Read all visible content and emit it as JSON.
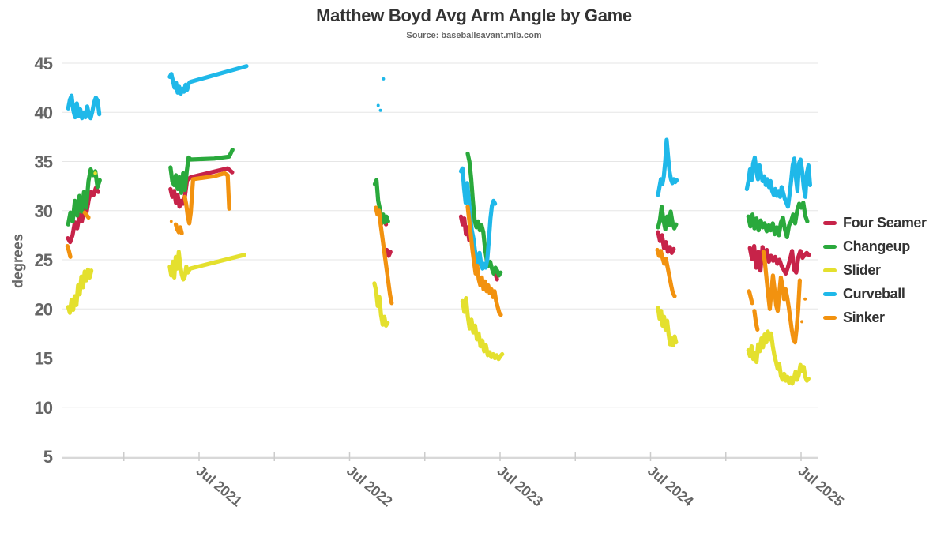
{
  "title": "Matthew Boyd Avg Arm Angle by Game",
  "subtitle": "Source: baseballsavant.mlb.com",
  "colors": {
    "background": "#ffffff",
    "grid": "#e6e6e6",
    "axis_line": "#cccccc",
    "tick": "#cccccc",
    "axis_label": "#666666",
    "title": "#333333",
    "subtitle": "#666666",
    "legend_text": "#333333"
  },
  "chart_data": {
    "type": "line",
    "title": "Matthew Boyd Avg Arm Angle by Game",
    "subtitle": "Source: baseballsavant.mlb.com",
    "xlabel": "",
    "ylabel": "degrees",
    "grid": "horizontal-only",
    "legend_position": "right",
    "y_axis": {
      "min": 5,
      "max": 45,
      "ticks": [
        45,
        40,
        35,
        30,
        25,
        20,
        15,
        10,
        5
      ]
    },
    "x_axis": {
      "unit": "decimal-year",
      "min": 2020.55,
      "max": 2025.62,
      "tick_values": [
        2021.0,
        2021.5,
        2022.0,
        2022.5,
        2023.0,
        2023.5,
        2024.0,
        2024.5,
        2025.0,
        2025.5
      ],
      "labels": [
        {
          "value": 2021.5,
          "text": "Jul 2021"
        },
        {
          "value": 2022.5,
          "text": "Jul 2022"
        },
        {
          "value": 2023.5,
          "text": "Jul 2023"
        },
        {
          "value": 2024.5,
          "text": "Jul 2024"
        },
        {
          "value": 2025.5,
          "text": "Jul 2025"
        }
      ]
    },
    "series": [
      {
        "name": "Four Seamer",
        "color": "#c72349",
        "segments": [
          {
            "x0": 2020.628,
            "dx": 0.0155,
            "y": [
              27.2,
              26.8,
              27.5,
              28.8,
              28.2,
              29.6,
              28.9,
              30.2,
              29.8,
              31.2,
              31.9,
              31.6,
              32.3,
              31.9
            ]
          },
          {
            "x": [
              2021.31,
              2021.322,
              2021.334,
              2021.346,
              2021.358,
              2021.37,
              2021.382,
              2021.394,
              2021.406,
              2021.42,
              2021.445,
              2021.69,
              2021.72
            ],
            "y": [
              32.2,
              31.4,
              32.0,
              30.8,
              31.6,
              30.4,
              31.0,
              30.7,
              31.5,
              33.1,
              33.4,
              34.3,
              33.9
            ]
          },
          {
            "x": [
              2022.73,
              2022.742
            ],
            "y": [
              29.0,
              28.6
            ]
          },
          {
            "x": [
              2022.748,
              2022.76,
              2022.772
            ],
            "y": [
              26.0,
              25.4,
              25.8
            ]
          },
          {
            "x0": 2023.24,
            "dx": 0.011,
            "y": [
              29.4,
              28.6,
              29.2,
              27.6,
              28.3,
              27.0,
              27.8
            ]
          },
          {
            "x": [
              2023.468,
              2023.48
            ],
            "y": [
              23.6,
              23.0
            ]
          },
          {
            "x0": 2024.55,
            "dx": 0.013,
            "y": [
              27.8,
              26.9,
              27.5,
              26.2,
              26.8,
              25.8,
              26.3,
              25.7,
              26.1
            ]
          },
          {
            "x0": 2025.16,
            "dx": 0.014,
            "y": [
              26.2,
              25.1,
              26.4,
              24.2,
              25.8,
              23.9,
              26.3,
              25.2,
              26.0,
              24.8,
              25.4,
              24.9,
              25.3,
              24.6,
              25.0,
              24.4,
              24.0,
              23.6,
              24.2,
              25.0,
              25.9,
              24.0,
              23.7,
              25.3,
              25.9,
              25.2,
              25.5,
              25.7,
              25.5
            ]
          }
        ],
        "dots": []
      },
      {
        "name": "Changeup",
        "color": "#2aa93c",
        "segments": [
          {
            "x0": 2020.63,
            "dx": 0.015,
            "y": [
              28.6,
              29.8,
              28.9,
              31.0,
              29.5,
              31.5,
              29.9,
              31.9,
              30.3,
              33.0,
              34.2,
              33.6,
              34.0,
              32.4,
              33.1
            ]
          },
          {
            "x": [
              2021.31,
              2021.322,
              2021.334,
              2021.346,
              2021.358,
              2021.37,
              2021.382,
              2021.394,
              2021.406,
              2021.418,
              2021.43,
              2021.445,
              2021.6,
              2021.7,
              2021.722
            ],
            "y": [
              34.4,
              33.0,
              32.6,
              33.6,
              32.2,
              33.4,
              31.8,
              33.8,
              32.1,
              34.0,
              35.4,
              35.2,
              35.3,
              35.5,
              36.2
            ]
          },
          {
            "x0": 2022.668,
            "dx": 0.011,
            "y": [
              32.7,
              33.1,
              31.0,
              30.2,
              28.7,
              29.6,
              28.8,
              29.4,
              28.9
            ]
          },
          {
            "x0": 2023.285,
            "dx": 0.0115,
            "y": [
              35.8,
              35.0,
              33.3,
              31.0,
              29.0,
              28.3,
              28.9,
              28.0,
              28.5,
              27.8,
              26.1,
              25.0,
              24.4,
              24.8,
              24.1,
              23.6,
              24.2,
              23.9,
              23.4,
              23.7
            ]
          },
          {
            "x0": 2024.55,
            "dx": 0.012,
            "y": [
              28.3,
              29.0,
              30.4,
              29.0,
              28.1,
              29.4,
              28.5,
              29.9,
              28.8,
              28.2,
              28.6
            ]
          },
          {
            "x0": 2025.15,
            "dx": 0.0135,
            "y": [
              29.4,
              28.4,
              29.6,
              28.2,
              29.2,
              28.0,
              29.0,
              28.3,
              28.7,
              27.9,
              28.5,
              28.0,
              28.7,
              27.6,
              28.3,
              27.5,
              28.8,
              29.3,
              28.1,
              27.3,
              28.5,
              28.9,
              29.6,
              28.7,
              30.0,
              30.7,
              30.3,
              30.8,
              29.5,
              28.9
            ]
          }
        ],
        "dots": []
      },
      {
        "name": "Slider",
        "color": "#e4e02e",
        "segments": [
          {
            "x0": 2020.63,
            "dx": 0.011,
            "y": [
              20.2,
              19.6,
              20.9,
              19.9,
              21.3,
              20.4,
              22.4,
              21.5,
              23.3,
              22.2,
              23.8,
              22.9,
              24.0,
              23.2,
              23.9
            ]
          },
          {
            "x": [
              2021.305,
              2021.315,
              2021.325,
              2021.335,
              2021.345,
              2021.355,
              2021.365,
              2021.375,
              2021.385,
              2021.395,
              2021.405,
              2021.415,
              2021.425,
              2021.44,
              2021.8
            ],
            "y": [
              24.3,
              23.4,
              24.8,
              23.2,
              25.3,
              24.1,
              25.8,
              24.4,
              23.5,
              23.0,
              23.3,
              24.3,
              23.7,
              24.1,
              25.5
            ]
          },
          {
            "x0": 2022.665,
            "dx": 0.011,
            "y": [
              22.6,
              21.9,
              20.3,
              21.2,
              19.4,
              18.4,
              19.2,
              18.3,
              18.6
            ]
          },
          {
            "x0": 2023.25,
            "dx": 0.012,
            "y": [
              20.8,
              19.7,
              21.1,
              19.2,
              18.0,
              18.9,
              17.6,
              18.3,
              16.9,
              17.5,
              16.2,
              16.8,
              15.7,
              16.3,
              15.3,
              15.6,
              15.1,
              15.4,
              15.0,
              15.3,
              14.9,
              15.2,
              15.4
            ]
          },
          {
            "x0": 2024.55,
            "dx": 0.01,
            "y": [
              20.1,
              19.0,
              19.8,
              18.3,
              19.2,
              17.9,
              18.8,
              17.4,
              16.4,
              17.0,
              16.3,
              17.2,
              16.6
            ]
          },
          {
            "x0": 2025.15,
            "dx": 0.0108,
            "y": [
              15.8,
              15.2,
              16.2,
              14.9,
              15.5,
              14.6,
              16.4,
              15.7,
              17.0,
              16.1,
              17.4,
              16.6,
              17.7,
              16.9,
              17.5,
              16.2,
              15.3,
              14.6,
              13.9,
              14.4,
              13.2,
              12.8,
              13.4,
              12.7,
              13.1,
              12.5,
              13.0,
              12.4,
              12.9,
              13.6,
              12.8,
              13.3,
              14.3,
              13.7,
              14.1,
              13.1,
              12.7,
              12.9
            ]
          }
        ],
        "dots": [
          [
            2020.81,
            33.8,
            2.3
          ]
        ]
      },
      {
        "name": "Curveball",
        "color": "#1fb8e9",
        "segments": [
          {
            "x0": 2020.63,
            "dx": 0.0115,
            "y": [
              40.4,
              41.3,
              41.7,
              40.2,
              39.5,
              40.9,
              39.6,
              40.3,
              39.4,
              40.0,
              39.5,
              40.6,
              39.7,
              39.4,
              40.1,
              41.0,
              41.5,
              41.2,
              39.8
            ]
          },
          {
            "x": [
              2021.305,
              2021.3155,
              2021.326,
              2021.3365,
              2021.347,
              2021.3575,
              2021.368,
              2021.3785,
              2021.389,
              2021.3995,
              2021.41,
              2021.4205,
              2021.431,
              2021.4415,
              2021.815
            ],
            "y": [
              43.6,
              43.9,
              43.2,
              42.5,
              43.0,
              42.0,
              42.6,
              41.9,
              42.4,
              42.1,
              42.8,
              42.3,
              42.9,
              43.1,
              44.7
            ]
          },
          {
            "x0": 2023.24,
            "dx": 0.0103,
            "y": [
              34.0,
              34.3,
              32.3,
              30.8,
              32.8,
              31.3,
              29.5,
              28.0,
              27.2,
              26.0,
              25.1,
              24.5,
              25.7,
              24.6,
              24.1,
              24.6,
              24.2,
              25.0,
              27.0,
              29.2,
              30.5,
              31.0,
              30.7
            ]
          },
          {
            "x0": 2024.55,
            "dx": 0.0095,
            "y": [
              31.6,
              32.4,
              33.2,
              32.7,
              33.5,
              35.0,
              37.2,
              35.5,
              34.0,
              33.2,
              32.8,
              33.2,
              32.9,
              33.1
            ]
          },
          {
            "x0": 2025.14,
            "dx": 0.0105,
            "y": [
              32.2,
              33.0,
              34.2,
              33.1,
              34.8,
              35.4,
              34.0,
              33.2,
              34.6,
              33.6,
              33.0,
              33.5,
              32.6,
              33.2,
              32.4,
              33.0,
              32.0,
              31.6,
              32.2,
              31.5,
              32.0,
              31.4,
              32.4,
              31.8,
              31.2,
              30.8,
              30.4,
              31.6,
              33.0,
              34.6,
              35.3,
              33.4,
              32.0,
              34.8,
              35.2,
              34.0,
              32.4,
              31.4,
              33.8,
              34.6,
              32.6
            ]
          }
        ],
        "dots": [
          [
            2022.69,
            40.7,
            2.0
          ],
          [
            2022.705,
            40.2,
            2.0
          ],
          [
            2022.725,
            43.4,
            2.0
          ]
        ]
      },
      {
        "name": "Sinker",
        "color": "#f2920f",
        "segments": [
          {
            "x": [
              2020.625,
              2020.635,
              2020.645
            ],
            "y": [
              26.4,
              25.9,
              25.3
            ]
          },
          {
            "x": [
              2020.74,
              2020.75,
              2020.765
            ],
            "y": [
              29.8,
              29.6,
              29.3
            ]
          },
          {
            "x": [
              2021.345,
              2021.355,
              2021.365,
              2021.375,
              2021.385
            ],
            "y": [
              28.6,
              28.1,
              27.8,
              28.3,
              27.7
            ]
          },
          {
            "x": [
              2021.405,
              2021.415,
              2021.425,
              2021.435,
              2021.445,
              2021.46,
              2021.6,
              2021.67,
              2021.69,
              2021.695,
              2021.7
            ],
            "y": [
              31.4,
              30.6,
              29.4,
              28.7,
              29.8,
              33.2,
              33.5,
              33.8,
              33.6,
              32.0,
              30.2
            ]
          },
          {
            "x0": 2022.675,
            "dx": 0.0105,
            "y": [
              30.3,
              29.6,
              30.0,
              28.6,
              27.4,
              26.2,
              25.0,
              23.8,
              22.6,
              21.4,
              20.6
            ]
          },
          {
            "x0": 2023.285,
            "dx": 0.0105,
            "y": [
              30.4,
              29.0,
              27.5,
              26.0,
              24.8,
              23.6,
              24.4,
              23.0,
              22.4,
              23.2,
              22.0,
              22.8,
              21.8,
              22.4,
              21.6,
              22.0,
              21.2,
              21.8,
              20.8,
              20.2,
              19.6,
              19.4
            ]
          },
          {
            "x0": 2024.545,
            "dx": 0.0115,
            "y": [
              26.0,
              25.4,
              25.9,
              25.2,
              24.6,
              25.1,
              24.2,
              23.3,
              22.4,
              21.6,
              21.3
            ]
          },
          {
            "x": [
              2025.155,
              2025.165,
              2025.175
            ],
            "y": [
              21.8,
              21.2,
              20.6
            ]
          },
          {
            "x": [
              2025.19,
              2025.2,
              2025.21
            ],
            "y": [
              19.8,
              18.6,
              17.9
            ]
          },
          {
            "x0": 2025.25,
            "dx": 0.0105,
            "y": [
              25.8,
              24.6,
              23.0,
              21.4,
              20.0,
              21.8,
              23.4,
              22.0,
              20.4,
              19.8,
              21.6,
              23.2,
              22.4,
              21.0,
              22.0,
              21.2,
              20.2,
              19.0,
              17.8,
              16.9,
              16.6,
              18.0,
              20.0,
              22.9
            ]
          }
        ],
        "dots": [
          [
            2021.315,
            28.9,
            1.9
          ],
          [
            2025.506,
            18.7,
            2.0
          ],
          [
            2025.527,
            21.0,
            2.0
          ]
        ]
      }
    ]
  },
  "legend": {
    "items": [
      "Four Seamer",
      "Changeup",
      "Slider",
      "Curveball",
      "Sinker"
    ]
  }
}
